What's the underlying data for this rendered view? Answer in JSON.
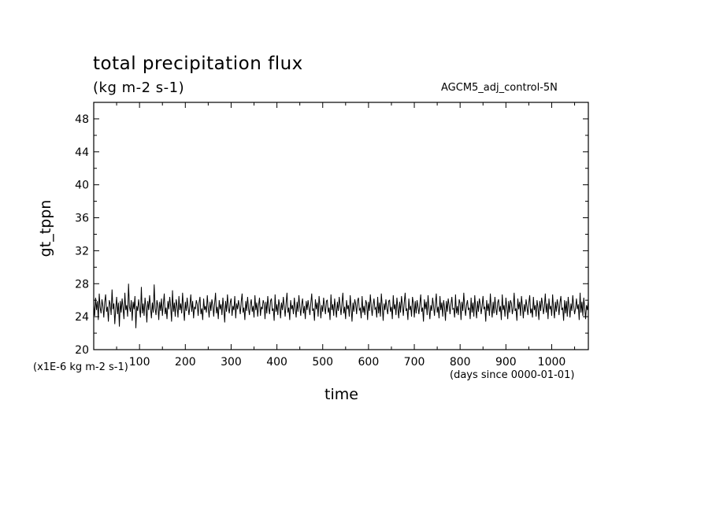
{
  "chart_data": {
    "type": "line",
    "title": "total precipitation flux",
    "subtitle": "(kg m-2 s-1)",
    "dataset_label": "AGCM5_adj_control-5N",
    "ylabel": "gt_tppn",
    "yunits": "(x1E-6 kg m-2 s-1)",
    "xlabel": "time",
    "xunits": "(days since 0000-01-01)",
    "xlim": [
      0,
      1080
    ],
    "ylim": [
      20,
      50
    ],
    "x_ticks": [
      100,
      200,
      300,
      400,
      500,
      600,
      700,
      800,
      900,
      1000
    ],
    "y_ticks": [
      20,
      24,
      28,
      32,
      36,
      40,
      44,
      48
    ],
    "grid": false,
    "series": [
      {
        "x_start": 0,
        "x_step": 2,
        "values": [
          25.4,
          24.1,
          26.3,
          24.8,
          25.9,
          23.6,
          26.8,
          25.1,
          24.4,
          26.1,
          25.3,
          23.9,
          25.8,
          26.7,
          24.6,
          25.2,
          23.4,
          26.0,
          25.5,
          24.2,
          27.3,
          24.9,
          25.6,
          23.1,
          25.0,
          26.4,
          24.3,
          25.7,
          22.8,
          25.9,
          24.5,
          26.2,
          25.1,
          23.7,
          26.9,
          24.8,
          25.4,
          24.0,
          28.0,
          25.2,
          24.6,
          26.0,
          23.5,
          25.8,
          24.9,
          26.5,
          22.6,
          25.3,
          24.7,
          26.1,
          25.0,
          23.9,
          27.6,
          24.4,
          25.6,
          24.1,
          26.3,
          25.2,
          23.3,
          25.9,
          24.8,
          26.6,
          25.1,
          23.8,
          25.7,
          24.5,
          27.9,
          25.0,
          24.2,
          26.0,
          25.4,
          23.6,
          25.8,
          24.7,
          26.2,
          24.1,
          25.5,
          26.8,
          24.3,
          25.1,
          23.7,
          25.9,
          24.9,
          26.4,
          25.2,
          23.4,
          27.2,
          24.6,
          25.7,
          24.0,
          26.1,
          25.3,
          23.9,
          26.5,
          24.8,
          25.6,
          24.4,
          26.9,
          25.0,
          23.5,
          25.8,
          24.7,
          26.3,
          25.1,
          24.2,
          25.4,
          26.7,
          24.6,
          25.9,
          23.8,
          25.2,
          24.9,
          26.0,
          25.5,
          24.1,
          25.7,
          26.4,
          24.3,
          25.0,
          23.6,
          26.2,
          24.8,
          25.3,
          24.5,
          26.6,
          25.1,
          23.9,
          25.8,
          24.7,
          26.1,
          25.4,
          24.0,
          25.6,
          26.9,
          24.4,
          25.2,
          23.7,
          26.0,
          24.9,
          25.5,
          24.2,
          26.3,
          25.0,
          23.3,
          25.9,
          24.6,
          26.7,
          25.1,
          24.4,
          25.7,
          26.2,
          24.1,
          25.3,
          24.8,
          26.5,
          23.8,
          25.6,
          24.9,
          26.0,
          25.2,
          24.3,
          25.8,
          26.8,
          24.5,
          25.1,
          23.6,
          25.9,
          24.7,
          26.4,
          25.0,
          24.2,
          25.5,
          26.1,
          24.6,
          25.3,
          23.9,
          26.6,
          24.8,
          25.7,
          24.0,
          25.4,
          26.3,
          24.1,
          25.2,
          24.9,
          26.0,
          25.6,
          23.7,
          25.8,
          24.4,
          26.5,
          25.1,
          24.3,
          25.9,
          26.2,
          24.7,
          25.0,
          23.5,
          26.7,
          24.6,
          25.5,
          24.2,
          26.1,
          25.3,
          23.8,
          25.7,
          24.8,
          26.4,
          25.2,
          24.0,
          25.6,
          26.9,
          24.5,
          25.1,
          23.6,
          26.0,
          24.9,
          25.4,
          24.3,
          26.3,
          25.0,
          23.9,
          25.8,
          24.6,
          26.6,
          25.2,
          24.1,
          25.5,
          26.2,
          24.4,
          25.3,
          23.7,
          25.9,
          24.8,
          26.0,
          25.1,
          24.2,
          25.6,
          26.8,
          24.7,
          25.0,
          23.5,
          26.1,
          24.9,
          25.7,
          24.0,
          26.5,
          25.3,
          23.8,
          25.4,
          24.6,
          26.3,
          25.2,
          24.3,
          25.9,
          26.0,
          24.5,
          25.1,
          23.6,
          26.7,
          24.8,
          25.5,
          24.1,
          26.2,
          25.0,
          23.9,
          25.8,
          24.7,
          26.4,
          25.3,
          24.2,
          25.6,
          26.9,
          24.4,
          25.2,
          23.7,
          26.0,
          24.9,
          25.4,
          24.0,
          26.6,
          25.1,
          23.4,
          25.7,
          24.6,
          26.1,
          25.5,
          24.3,
          25.9,
          26.3,
          24.8,
          25.0,
          23.8,
          26.5,
          24.5,
          25.3,
          24.2,
          26.0,
          25.6,
          23.6,
          25.8,
          24.7,
          26.7,
          25.2,
          24.1,
          25.4,
          26.2,
          24.9,
          25.1,
          23.9,
          26.4,
          24.4,
          25.7,
          24.0,
          26.8,
          25.3,
          23.5,
          25.6,
          24.8,
          26.1,
          25.0,
          24.3,
          25.9,
          26.0,
          24.6,
          25.2,
          23.7,
          26.6,
          24.9,
          25.5,
          24.2,
          26.3,
          25.1,
          23.8,
          25.8,
          24.5,
          26.5,
          25.4,
          24.1,
          25.7,
          26.9,
          24.7,
          25.0,
          23.6,
          26.2,
          24.8,
          25.3,
          24.0,
          26.4,
          25.6,
          23.9,
          25.9,
          24.4,
          26.0,
          25.2,
          24.3,
          25.5,
          26.7,
          24.6,
          25.1,
          23.4,
          26.1,
          24.9,
          25.8,
          24.2,
          26.6,
          25.0,
          23.7,
          25.4,
          24.7,
          26.3,
          25.3,
          24.1,
          25.6,
          26.8,
          24.5,
          25.2,
          23.8,
          26.5,
          24.8,
          25.7,
          24.0,
          26.0,
          25.1,
          23.5,
          25.9,
          24.6,
          26.2,
          25.4,
          24.3,
          25.5,
          26.4,
          24.9,
          25.0,
          23.9,
          26.7,
          24.4,
          25.3,
          24.2,
          26.1,
          25.6,
          23.6,
          25.8,
          24.7,
          26.9,
          25.2,
          24.1,
          25.4,
          26.0,
          24.8,
          25.1,
          23.7,
          26.3,
          24.5,
          25.7,
          24.0,
          26.6,
          25.0,
          23.8,
          25.9,
          24.6,
          26.2,
          25.5,
          24.3,
          25.3,
          26.5,
          24.9,
          25.2,
          23.4,
          26.0,
          24.7,
          25.6,
          24.1,
          26.8,
          25.1,
          23.9,
          25.8,
          24.4,
          26.4,
          25.0,
          24.2,
          25.7,
          26.1,
          24.6,
          25.3,
          23.6,
          26.7,
          24.8,
          25.4,
          24.0,
          26.3,
          25.2,
          23.7,
          25.9,
          24.5,
          26.0,
          25.6,
          24.3,
          25.1,
          26.9,
          24.7,
          25.0,
          23.5,
          26.2,
          24.9,
          25.8,
          24.1,
          26.5,
          25.3,
          23.8,
          25.5,
          24.6,
          26.1,
          25.2,
          24.2,
          25.7,
          26.6,
          24.4,
          25.0,
          23.9,
          26.4,
          24.8,
          25.4,
          24.0,
          26.0,
          25.1,
          23.6,
          25.9,
          24.7,
          26.3,
          25.5,
          24.3,
          25.2,
          26.8,
          24.5,
          25.6,
          23.7,
          26.2,
          24.9,
          25.3,
          24.1,
          26.7,
          25.0,
          23.8,
          25.8,
          24.6,
          26.1,
          25.4,
          24.2,
          25.7,
          26.5,
          24.8,
          25.1,
          23.5,
          26.0,
          24.4,
          25.9,
          24.0,
          26.4,
          25.2,
          23.9,
          25.6,
          24.7,
          26.6,
          25.3,
          24.3,
          25.0,
          26.2,
          24.9,
          25.5,
          23.6,
          26.9,
          24.5,
          25.8,
          24.1,
          26.3,
          25.1,
          23.7,
          25.4,
          24.8,
          26.0,
          25.6,
          24.2,
          25.2
        ]
      }
    ]
  }
}
